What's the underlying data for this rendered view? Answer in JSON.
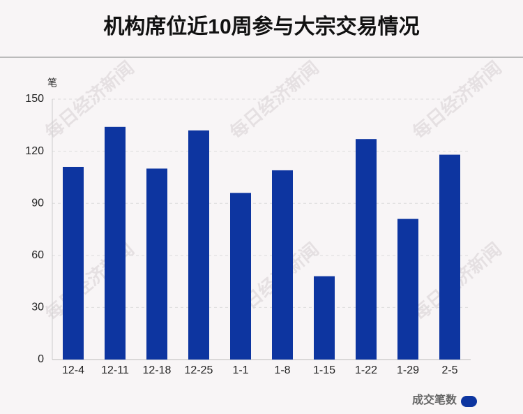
{
  "chart_data": {
    "type": "bar",
    "title": "机构席位近10周参与大宗交易情况",
    "y_unit": "笔",
    "watermark": "每日经济新闻",
    "categories": [
      "12-4",
      "12-11",
      "12-18",
      "12-25",
      "1-1",
      "1-8",
      "1-15",
      "1-22",
      "1-29",
      "2-5"
    ],
    "series": [
      {
        "name": "成交笔数",
        "color": "#0d35a0",
        "values": [
          111,
          134,
          110,
          132,
          96,
          109,
          48,
          127,
          81,
          118
        ]
      }
    ],
    "ylim": [
      0,
      150
    ],
    "yticks": [
      0,
      30,
      60,
      90,
      120,
      150
    ],
    "grid": true,
    "legend": "bottom-right"
  }
}
